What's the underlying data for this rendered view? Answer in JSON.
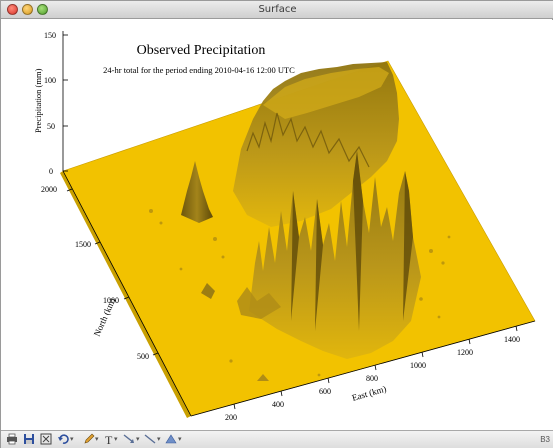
{
  "window": {
    "title": "Surface"
  },
  "plot": {
    "title": "Observed Precipitation",
    "subtitle": "24-hr total for the period ending 2010-04-16 12:00 UTC",
    "z_label": "Precipitation (mm)",
    "y_label": "North (km)",
    "x_label": "East (km)",
    "surface_color": "#f2c200",
    "z_ticks": [
      "0",
      "50",
      "100",
      "150"
    ],
    "y_ticks": [
      "500",
      "1000",
      "1500",
      "2000"
    ],
    "x_ticks": [
      "200",
      "400",
      "600",
      "800",
      "1000",
      "1200",
      "1400"
    ]
  },
  "toolbar": {
    "items": [
      "print-icon",
      "save-icon",
      "fit-window-icon",
      "undo-icon",
      "pencil-icon",
      "text-tool",
      "arrow-tool",
      "line-tool",
      "polygon-tool"
    ],
    "text_tool_label": "T",
    "status": "B3"
  }
}
